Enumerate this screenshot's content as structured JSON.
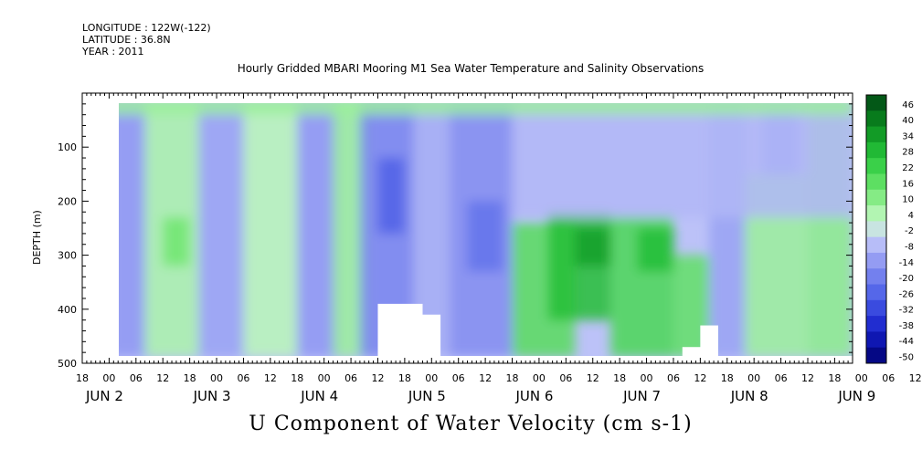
{
  "header": {
    "longitude": "LONGITUDE : 122W(-122)",
    "latitude": "LATITUDE : 36.8N",
    "year": "YEAR : 2011"
  },
  "chart_data": {
    "type": "heatmap",
    "title": "Hourly Gridded MBARI Mooring M1 Sea Water Temperature and Salinity Observations",
    "xlabel": "U Component of Water Velocity (cm s-1)",
    "ylabel": "DEPTH (m)",
    "ylim": [
      500,
      0
    ],
    "yticks": [
      100,
      200,
      300,
      400,
      500
    ],
    "xlim_hours": [
      0,
      172
    ],
    "hour_ticks": [
      "18",
      "00",
      "06",
      "12",
      "18",
      "00",
      "06",
      "12",
      "18",
      "00",
      "06",
      "12",
      "18",
      "00",
      "06",
      "12",
      "18",
      "00",
      "06",
      "12",
      "18",
      "00",
      "06",
      "12",
      "18",
      "00",
      "06",
      "12",
      "18",
      "00",
      "06",
      "12"
    ],
    "day_labels": [
      "JUN  2",
      "JUN  3",
      "JUN  4",
      "JUN  5",
      "JUN  6",
      "JUN  7",
      "JUN  8",
      "JUN  9"
    ],
    "colorbar_ticks": [
      "46",
      "40",
      "34",
      "28",
      "22",
      "16",
      "10",
      "4",
      "-2",
      "-8",
      "-14",
      "-20",
      "-26",
      "-32",
      "-38",
      "-44",
      "-50"
    ],
    "colorbar_range": [
      -50,
      52
    ],
    "data_depth_range": [
      10,
      488
    ],
    "data_time_start_hour": 6,
    "regions": [
      {
        "t": [
          6,
          14
        ],
        "d": [
          10,
          488
        ],
        "v": -12
      },
      {
        "t": [
          14,
          26
        ],
        "d": [
          10,
          488
        ],
        "v": 8
      },
      {
        "t": [
          18,
          24
        ],
        "d": [
          230,
          320
        ],
        "v": 16
      },
      {
        "t": [
          26,
          36
        ],
        "d": [
          10,
          488
        ],
        "v": -10
      },
      {
        "t": [
          36,
          48
        ],
        "d": [
          10,
          488
        ],
        "v": 6
      },
      {
        "t": [
          48,
          58
        ],
        "d": [
          10,
          488
        ],
        "v": -12
      },
      {
        "t": [
          56,
          64
        ],
        "d": [
          10,
          488
        ],
        "v": 10
      },
      {
        "t": [
          62,
          74
        ],
        "d": [
          10,
          488
        ],
        "v": -16
      },
      {
        "t": [
          66,
          72
        ],
        "d": [
          120,
          260
        ],
        "v": -24
      },
      {
        "t": [
          74,
          82
        ],
        "d": [
          10,
          488
        ],
        "v": -8
      },
      {
        "t": [
          82,
          96
        ],
        "d": [
          10,
          488
        ],
        "v": -14
      },
      {
        "t": [
          86,
          94
        ],
        "d": [
          200,
          330
        ],
        "v": -20
      },
      {
        "t": [
          96,
          110
        ],
        "d": [
          240,
          488
        ],
        "v": 20
      },
      {
        "t": [
          104,
          118
        ],
        "d": [
          220,
          420
        ],
        "v": 30
      },
      {
        "t": [
          110,
          118
        ],
        "d": [
          250,
          320
        ],
        "v": 36
      },
      {
        "t": [
          118,
          132
        ],
        "d": [
          230,
          488
        ],
        "v": 22
      },
      {
        "t": [
          124,
          132
        ],
        "d": [
          250,
          330
        ],
        "v": 30
      },
      {
        "t": [
          132,
          140
        ],
        "d": [
          300,
          488
        ],
        "v": 18
      },
      {
        "t": [
          140,
          148
        ],
        "d": [
          10,
          488
        ],
        "v": -10
      },
      {
        "t": [
          148,
          162
        ],
        "d": [
          150,
          488
        ],
        "v": 10
      },
      {
        "t": [
          152,
          160
        ],
        "d": [
          10,
          150
        ],
        "v": -14
      },
      {
        "t": [
          162,
          172
        ],
        "d": [
          10,
          488
        ],
        "v": 12
      },
      {
        "t": [
          96,
          172
        ],
        "d": [
          10,
          230
        ],
        "v": -6
      },
      {
        "t": [
          6,
          172
        ],
        "d": [
          10,
          40
        ],
        "v": 10
      }
    ],
    "blank_regions": [
      {
        "t": [
          66,
          76
        ],
        "d": [
          390,
          488
        ]
      },
      {
        "t": [
          74,
          80
        ],
        "d": [
          410,
          488
        ]
      },
      {
        "t": [
          134,
          140
        ],
        "d": [
          470,
          488
        ]
      },
      {
        "t": [
          138,
          142
        ],
        "d": [
          430,
          488
        ]
      }
    ]
  }
}
